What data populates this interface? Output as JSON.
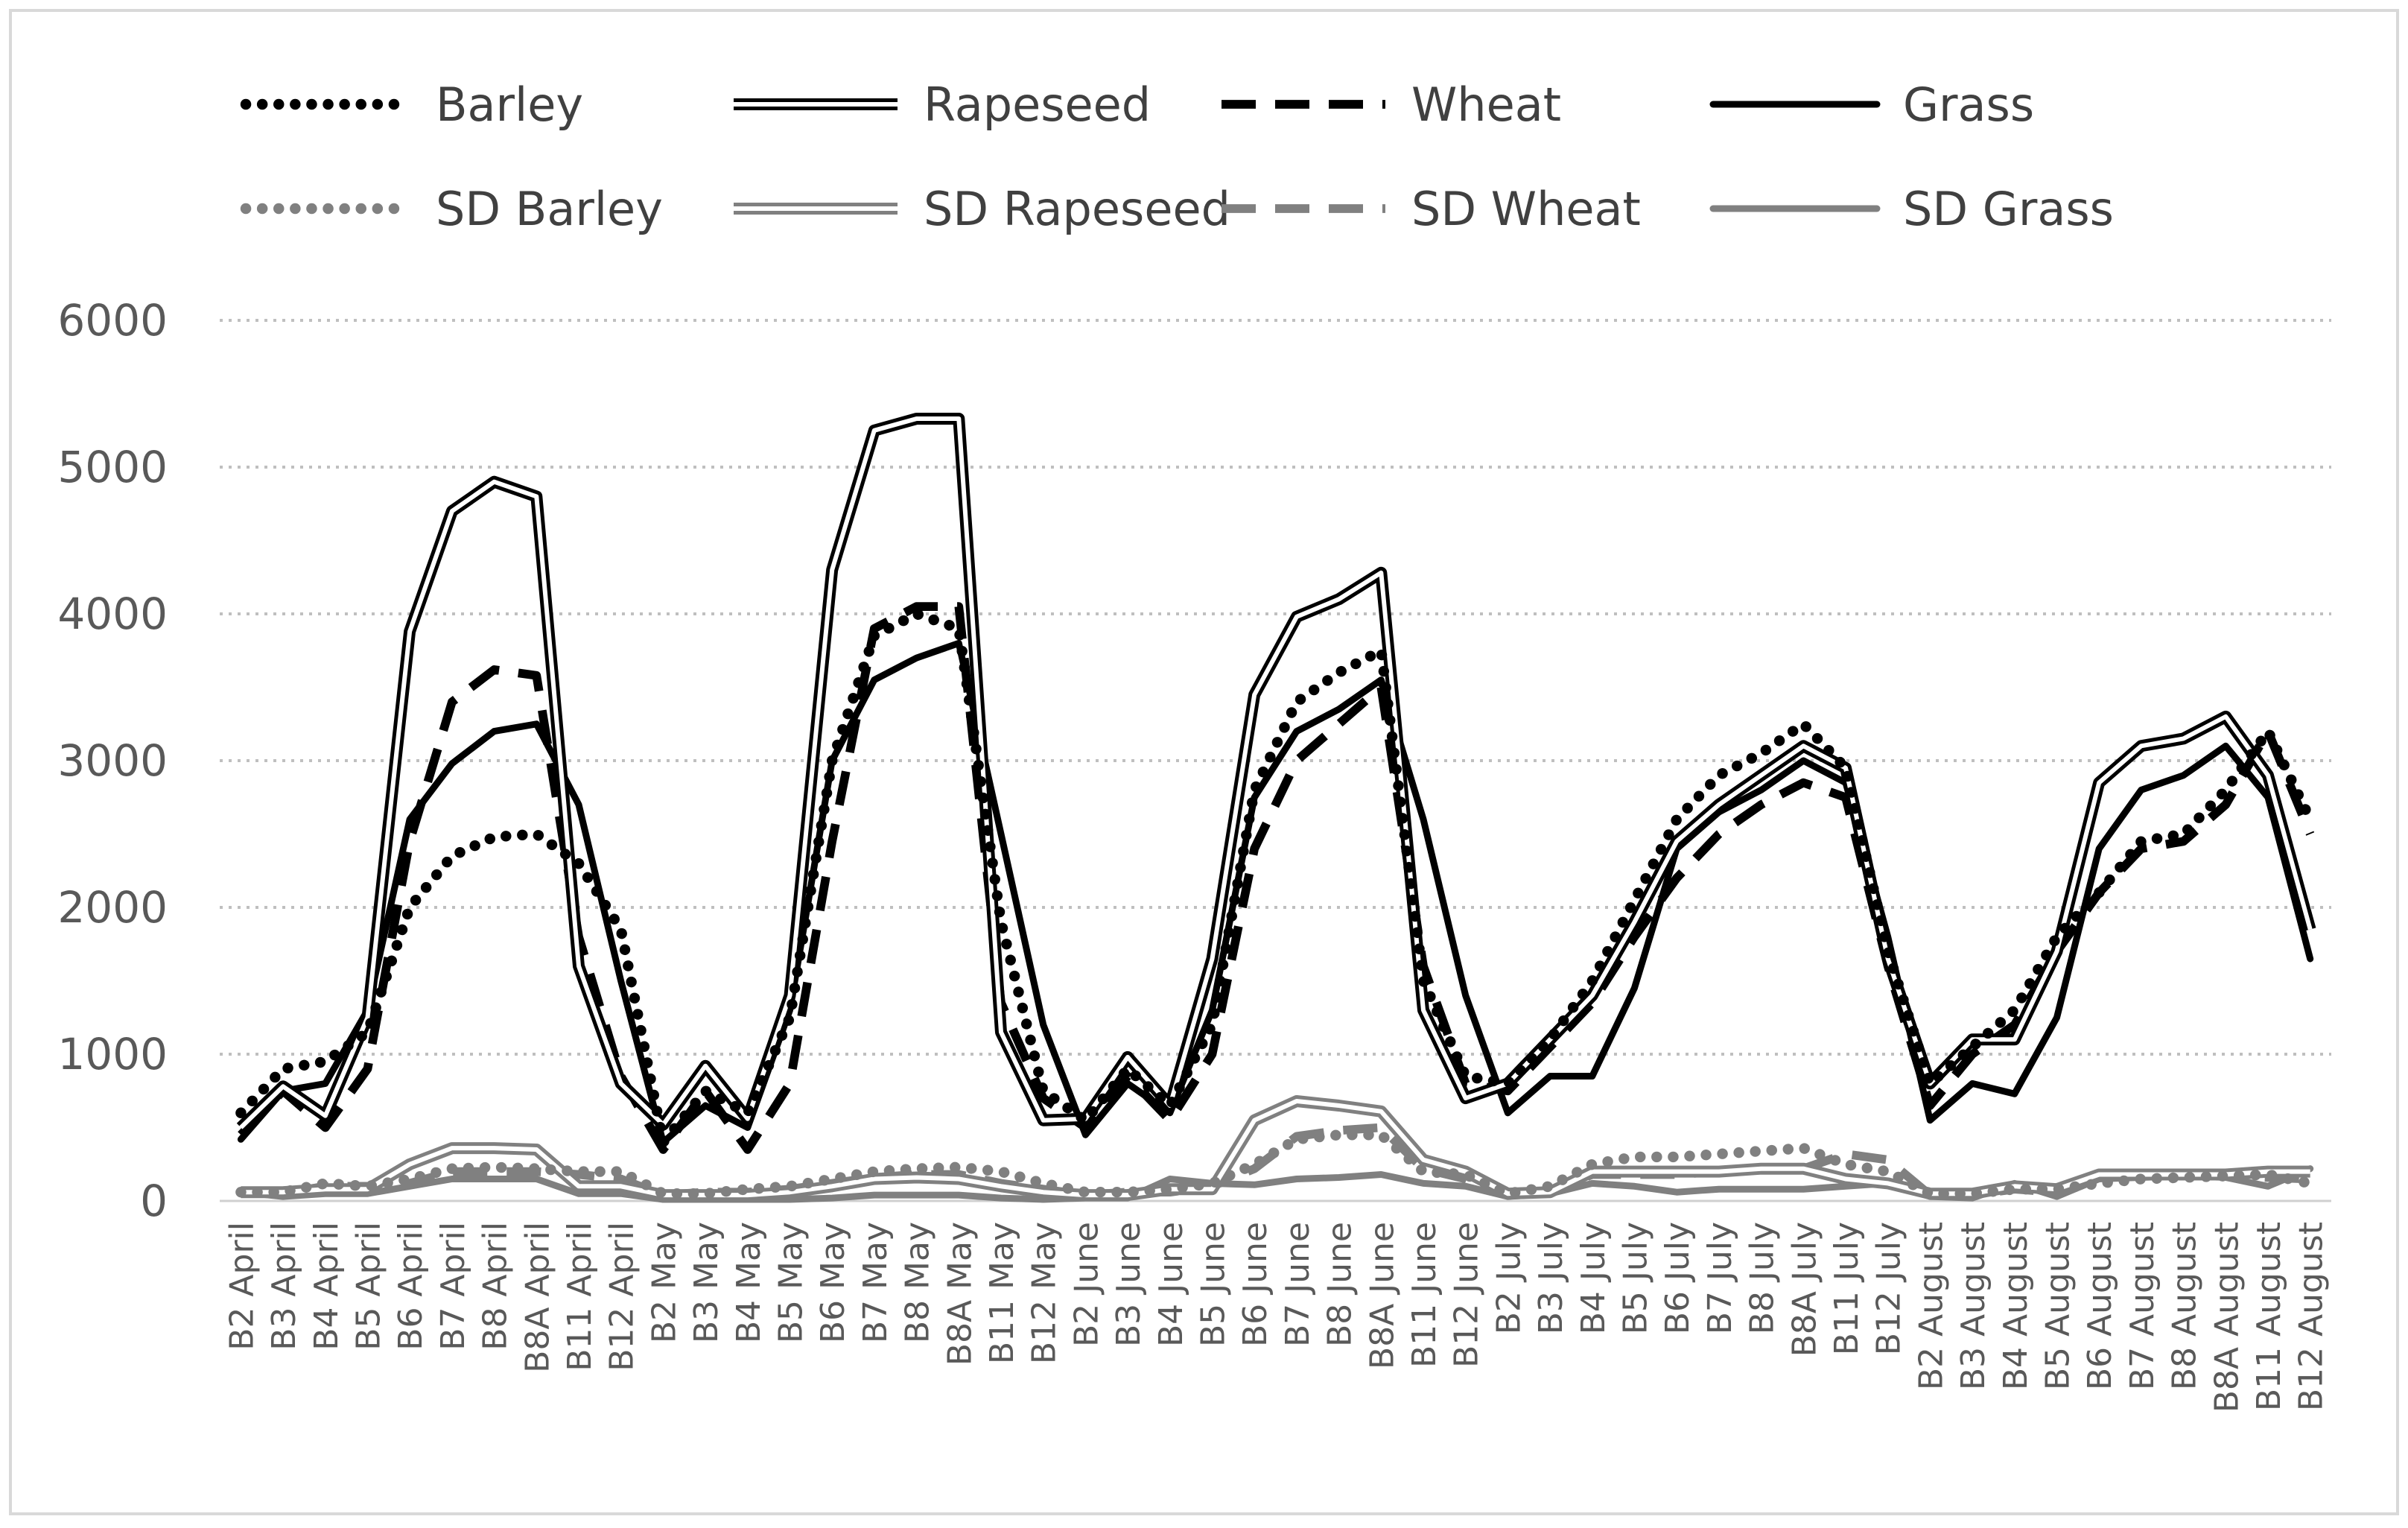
{
  "chart_data": {
    "type": "line",
    "title": "",
    "xlabel": "",
    "ylabel": "",
    "ylim": [
      0,
      6000
    ],
    "yticks": [
      0,
      1000,
      2000,
      3000,
      4000,
      5000,
      6000
    ],
    "grid": "horizontal dotted",
    "legend_position": "top",
    "categories": [
      "B2 April",
      "B3 April",
      "B4 April",
      "B5 April",
      "B6 April",
      "B7 April",
      "B8 April",
      "B8A April",
      "B11 April",
      "B12 April",
      "B2 May",
      "B3 May",
      "B4 May",
      "B5 May",
      "B6 May",
      "B7 May",
      "B8 May",
      "B8A May",
      "B11 May",
      "B12 May",
      "B2 June",
      "B3 June",
      "B4 June",
      "B5 June",
      "B6 June",
      "B7 June",
      "B8 June",
      "B8A June",
      "B11 June",
      "B12 June",
      "B2 July",
      "B3 July",
      "B4 July",
      "B5 July",
      "B6 July",
      "B7 July",
      "B8 July",
      "B8A July",
      "B11 July",
      "B12 July",
      "B2 August",
      "B3 August",
      "B4 August",
      "B5 August",
      "B6 August",
      "B7 August",
      "B8 August",
      "B8A August",
      "B11 August",
      "B12 August"
    ],
    "series": [
      {
        "name": "Barley",
        "color": "#000000",
        "style": "dotted",
        "values": [
          600,
          900,
          950,
          1150,
          2000,
          2350,
          2480,
          2500,
          2300,
          1850,
          400,
          750,
          600,
          1250,
          3000,
          3850,
          4000,
          3900,
          1900,
          750,
          550,
          900,
          650,
          1200,
          2800,
          3400,
          3600,
          3750,
          1500,
          850,
          800,
          1100,
          1500,
          2050,
          2600,
          2900,
          3050,
          3250,
          2950,
          1700,
          800,
          1050,
          1300,
          1800,
          2100,
          2450,
          2500,
          2800,
          3200,
          2600
        ]
      },
      {
        "name": "Rapeseed",
        "color": "#000000",
        "style": "double",
        "values": [
          500,
          780,
          580,
          1250,
          3880,
          4700,
          4900,
          4800,
          1600,
          800,
          520,
          920,
          560,
          1400,
          4300,
          5250,
          5330,
          5330,
          1150,
          550,
          560,
          980,
          650,
          1650,
          3450,
          3980,
          4100,
          4280,
          1300,
          700,
          800,
          1100,
          1400,
          1900,
          2450,
          2700,
          2900,
          3100,
          2950,
          1650,
          800,
          1100,
          1100,
          1700,
          2850,
          3100,
          3150,
          3300,
          2900,
          1850
        ]
      },
      {
        "name": "Wheat",
        "color": "#000000",
        "style": "dashed",
        "values": [
          450,
          750,
          500,
          900,
          2450,
          3400,
          3620,
          3580,
          1800,
          850,
          350,
          750,
          350,
          800,
          2450,
          3900,
          4050,
          4050,
          1350,
          700,
          500,
          850,
          550,
          1000,
          2400,
          3000,
          3250,
          3500,
          1600,
          800,
          750,
          1050,
          1350,
          1800,
          2200,
          2500,
          2700,
          2850,
          2750,
          1600,
          650,
          1000,
          1200,
          1700,
          2100,
          2400,
          2450,
          2700,
          3200,
          2500
        ]
      },
      {
        "name": "Grass",
        "color": "#000000",
        "style": "solid",
        "values": [
          420,
          750,
          800,
          1300,
          2600,
          2980,
          3200,
          3250,
          2700,
          1500,
          400,
          650,
          500,
          1300,
          3000,
          3550,
          3700,
          3800,
          2500,
          1200,
          450,
          800,
          600,
          1300,
          2750,
          3200,
          3350,
          3550,
          2600,
          1400,
          600,
          850,
          850,
          1450,
          2400,
          2650,
          2800,
          3000,
          2850,
          1800,
          550,
          800,
          730,
          1250,
          2400,
          2800,
          2900,
          3100,
          2750,
          1650
        ]
      },
      {
        "name": "SD Barley",
        "color": "#808080",
        "style": "dotted",
        "values": [
          60,
          60,
          120,
          100,
          150,
          220,
          230,
          220,
          200,
          200,
          50,
          50,
          80,
          100,
          150,
          200,
          220,
          230,
          200,
          120,
          60,
          60,
          80,
          120,
          250,
          420,
          450,
          450,
          200,
          180,
          50,
          100,
          250,
          300,
          300,
          320,
          340,
          360,
          250,
          200,
          50,
          50,
          80,
          80,
          120,
          150,
          160,
          170,
          180,
          120
        ]
      },
      {
        "name": "SD Rapeseed",
        "color": "#808080",
        "style": "double",
        "values": [
          60,
          60,
          80,
          80,
          250,
          360,
          360,
          350,
          100,
          100,
          40,
          40,
          40,
          60,
          100,
          150,
          160,
          150,
          100,
          60,
          40,
          40,
          80,
          80,
          550,
          680,
          650,
          610,
          280,
          200,
          50,
          60,
          200,
          200,
          200,
          200,
          220,
          220,
          150,
          120,
          50,
          50,
          100,
          80,
          180,
          180,
          180,
          180,
          200,
          200
        ]
      },
      {
        "name": "SD Wheat",
        "color": "#808080",
        "style": "dashed",
        "values": [
          50,
          50,
          100,
          100,
          120,
          200,
          200,
          200,
          180,
          150,
          40,
          60,
          60,
          80,
          120,
          160,
          180,
          180,
          120,
          80,
          40,
          60,
          60,
          100,
          220,
          440,
          480,
          500,
          220,
          150,
          40,
          60,
          180,
          180,
          180,
          200,
          220,
          220,
          320,
          280,
          40,
          40,
          80,
          60,
          160,
          180,
          180,
          170,
          160,
          150
        ]
      },
      {
        "name": "SD Grass",
        "color": "#808080",
        "style": "solid",
        "values": [
          60,
          30,
          50,
          50,
          100,
          150,
          150,
          150,
          50,
          50,
          10,
          10,
          10,
          10,
          20,
          40,
          40,
          40,
          20,
          10,
          20,
          20,
          150,
          120,
          110,
          150,
          160,
          180,
          120,
          100,
          30,
          50,
          120,
          100,
          60,
          80,
          80,
          80,
          100,
          120,
          30,
          20,
          120,
          30,
          150,
          160,
          170,
          160,
          100,
          220
        ]
      }
    ]
  }
}
